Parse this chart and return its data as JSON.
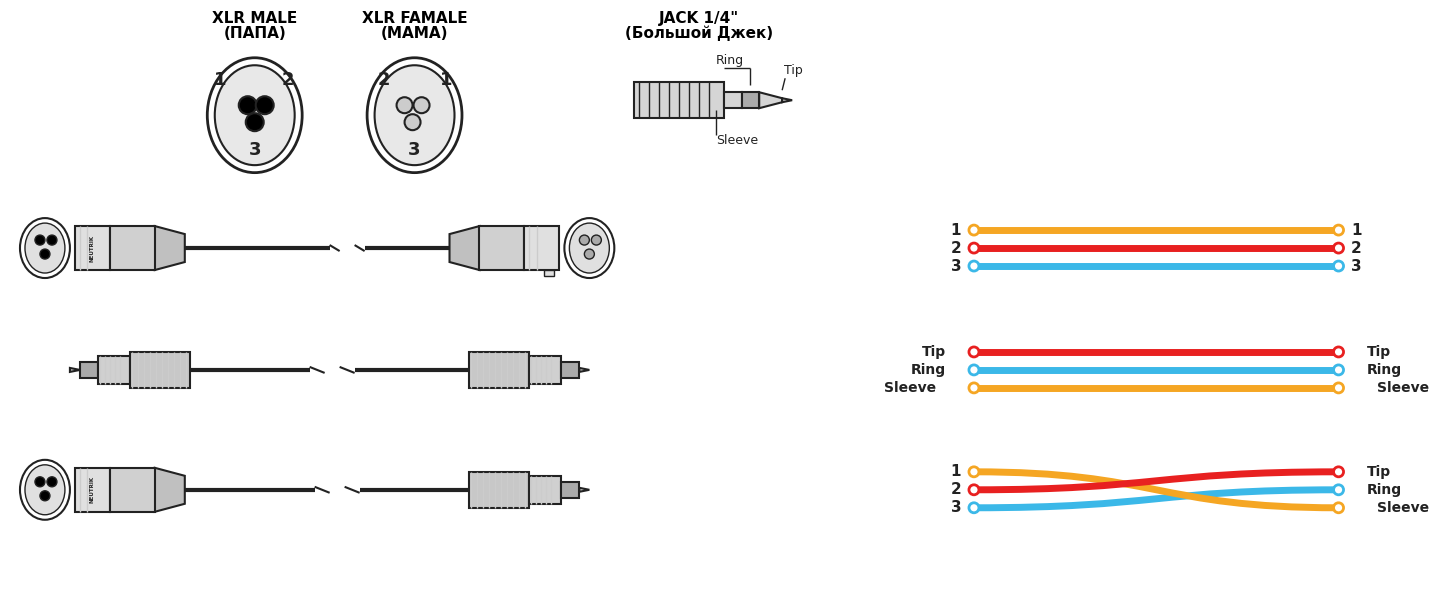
{
  "bg_color": "#ffffff",
  "title_xlr_male": "XLR MALE\n(ПАПА)",
  "title_xlr_female": "XLR FAMALE\n(МАМА)",
  "title_jack": "JACK 1/4\"\n(Большой Джек)",
  "color_orange": "#F5A623",
  "color_red": "#E82020",
  "color_blue": "#3BB8E8",
  "color_dark": "#222222",
  "color_gray": "#888888",
  "color_light_gray": "#cccccc",
  "wire_lw": 5,
  "node_r": 5
}
